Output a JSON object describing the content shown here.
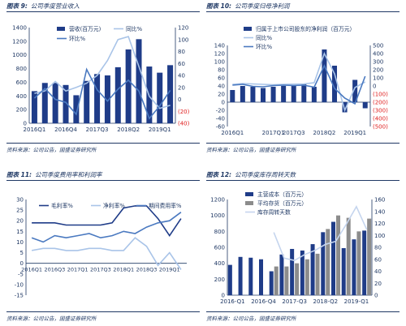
{
  "panels": [
    {
      "num": "图表 9:",
      "title": "公司季度营业收入",
      "source": "资料来源：公司公告，国盛证券研究所"
    },
    {
      "num": "图表 10:",
      "title": "公司季度归母净利润",
      "source": "资料来源：公司公告，国盛证券研究所"
    },
    {
      "num": "图表 11:",
      "title": "公司季度费用率和利润率",
      "source": "资料来源：公司公告，国盛证券研究所"
    },
    {
      "num": "图表 12:",
      "title": "公司季度库存周转天数",
      "source": "资料来源：公司公告，国盛证券研究所"
    }
  ],
  "colors": {
    "navy": "#1f3c88",
    "light_blue": "#a9c4e8",
    "mid_blue": "#4a79c0",
    "gray": "#8c8c8c",
    "red": "#e02020",
    "text": "#1f3864"
  },
  "chart_data": [
    {
      "type": "bar",
      "categories": [
        "2016Q1",
        "2016Q2",
        "2016Q3",
        "2016Q4",
        "2017Q1",
        "2017Q2",
        "2017Q3",
        "2017Q4",
        "2018Q1",
        "2018Q2",
        "2018Q3",
        "2018Q4",
        "2019Q1",
        "2019Q2"
      ],
      "x_tick_labels": [
        "2016Q1",
        "2016Q4",
        "2017Q3",
        "2018Q2",
        "2019Q1"
      ],
      "x_tick_indices": [
        0,
        3,
        6,
        9,
        12
      ],
      "series": [
        {
          "name": "营收(百万元)",
          "kind": "bar",
          "axis": "left",
          "values": [
            470,
            590,
            590,
            560,
            410,
            620,
            720,
            700,
            820,
            1080,
            1230,
            830,
            740,
            850
          ]
        },
        {
          "name": "同比%",
          "kind": "line",
          "axis": "right",
          "values": [
            10,
            14,
            30,
            14,
            20,
            27,
            40,
            65,
            100,
            105,
            55,
            5,
            -15,
            -10
          ]
        },
        {
          "name": "环比%",
          "kind": "line",
          "axis": "right",
          "values": [
            2,
            18,
            0,
            -5,
            -25,
            50,
            16,
            -3,
            17,
            32,
            14,
            -32,
            -11,
            15
          ]
        }
      ],
      "ylim_left": [
        0,
        1400
      ],
      "yticks_left": [
        0,
        200,
        400,
        600,
        800,
        1000,
        1200,
        1400
      ],
      "ylim_right": [
        -40,
        120
      ],
      "yticks_right": [
        -40,
        -20,
        0,
        20,
        40,
        60,
        80,
        100,
        120
      ]
    },
    {
      "type": "bar",
      "categories": [
        "2016Q1",
        "2016Q2",
        "2016Q3",
        "2016Q4",
        "2017Q1",
        "2017Q2",
        "2017Q3",
        "2017Q4",
        "2018Q1",
        "2018Q2",
        "2018Q3",
        "2018Q4",
        "2019Q1",
        "2019Q2"
      ],
      "x_tick_labels": [
        "2016Q1",
        "2017Q1",
        "2017Q3",
        "2018Q2",
        "2019Q1"
      ],
      "x_tick_indices": [
        0,
        4,
        6,
        9,
        12
      ],
      "series": [
        {
          "name": "归属于上市公司股东的净利润（百万元）",
          "kind": "bar",
          "axis": "left",
          "values": [
            30,
            40,
            38,
            35,
            38,
            40,
            42,
            45,
            38,
            130,
            90,
            -25,
            55,
            -15
          ]
        },
        {
          "name": "同比%",
          "kind": "line",
          "axis": "right",
          "values": [
            20,
            30,
            25,
            20,
            15,
            20,
            22,
            25,
            40,
            400,
            150,
            -300,
            -20,
            50
          ]
        },
        {
          "name": "环比%",
          "kind": "line",
          "axis": "right",
          "values": [
            10,
            20,
            -5,
            -10,
            5,
            10,
            5,
            10,
            -15,
            250,
            -30,
            -150,
            -220,
            120
          ]
        }
      ],
      "ylim_left": [
        -60,
        140
      ],
      "yticks_left": [
        -60,
        -40,
        -20,
        0,
        20,
        40,
        60,
        80,
        100,
        120,
        140
      ],
      "ylim_right": [
        -500,
        500
      ],
      "yticks_right": [
        -500,
        -400,
        -300,
        -200,
        -100,
        0,
        100,
        200,
        300,
        400,
        500
      ]
    },
    {
      "type": "line",
      "categories": [
        "2016Q1",
        "2016Q2",
        "2016Q3",
        "2016Q4",
        "2017Q1",
        "2017Q2",
        "2017Q3",
        "2017Q4",
        "2018Q1",
        "2018Q2",
        "2018Q3",
        "2018Q4",
        "2019Q1",
        "2019Q2"
      ],
      "x_tick_labels": [
        "2016Q1",
        "2016Q3",
        "2017Q1",
        "2017Q3",
        "2018Q1",
        "2018Q3",
        "2019Q1"
      ],
      "x_tick_indices": [
        0,
        2,
        4,
        6,
        8,
        10,
        12
      ],
      "series": [
        {
          "name": "毛利率%",
          "values": [
            19,
            19,
            19,
            18,
            18,
            18,
            18,
            19,
            26,
            27,
            27,
            21,
            13,
            21
          ]
        },
        {
          "name": "净利率%",
          "values": [
            6,
            7,
            7,
            6,
            6,
            7,
            7,
            6,
            6,
            12,
            8,
            -1,
            5,
            -3
          ]
        },
        {
          "name": "期间费用率%",
          "values": [
            12,
            10,
            13,
            12,
            13,
            14,
            12,
            13,
            15,
            14,
            17,
            19,
            20,
            24
          ]
        }
      ],
      "ylim": [
        -15,
        30
      ],
      "yticks": [
        -15,
        -10,
        -5,
        0,
        5,
        10,
        15,
        20,
        25,
        30
      ]
    },
    {
      "type": "bar",
      "categories": [
        "2016-Q1",
        "2016-Q2",
        "2016-Q3",
        "2016-Q4",
        "2017-Q1",
        "2017-Q2",
        "2017-Q3",
        "2017-Q4",
        "2018-Q1",
        "2018-Q2",
        "2018-Q3",
        "2018-Q4",
        "2019-Q1",
        "2019-Q2"
      ],
      "x_tick_labels": [
        "2016-Q1",
        "2016-Q4",
        "2017-Q3",
        "2018-Q2",
        "2019-Q1"
      ],
      "x_tick_indices": [
        0,
        3,
        6,
        9,
        12
      ],
      "series": [
        {
          "name": "主营成本（百万元）",
          "kind": "bar",
          "axis": "left",
          "values": [
            380,
            480,
            470,
            450,
            300,
            510,
            580,
            560,
            640,
            790,
            920,
            590,
            700,
            810
          ]
        },
        {
          "name": "平均存货（百万元）",
          "kind": "bar",
          "axis": "left",
          "values": [
            null,
            null,
            null,
            null,
            360,
            360,
            400,
            450,
            520,
            830,
            1000,
            970,
            800,
            960
          ]
        },
        {
          "name": "库存周转天数",
          "kind": "line",
          "axis": "right",
          "values": [
            null,
            null,
            null,
            null,
            105,
            62,
            58,
            68,
            75,
            85,
            90,
            118,
            148,
            110
          ]
        }
      ],
      "ylim_left": [
        0,
        1200
      ],
      "yticks_left": [
        0,
        200,
        400,
        600,
        800,
        1000,
        1200
      ],
      "ylim_right": [
        0,
        160
      ],
      "yticks_right": [
        0,
        20,
        40,
        60,
        80,
        100,
        120,
        140,
        160
      ]
    }
  ]
}
